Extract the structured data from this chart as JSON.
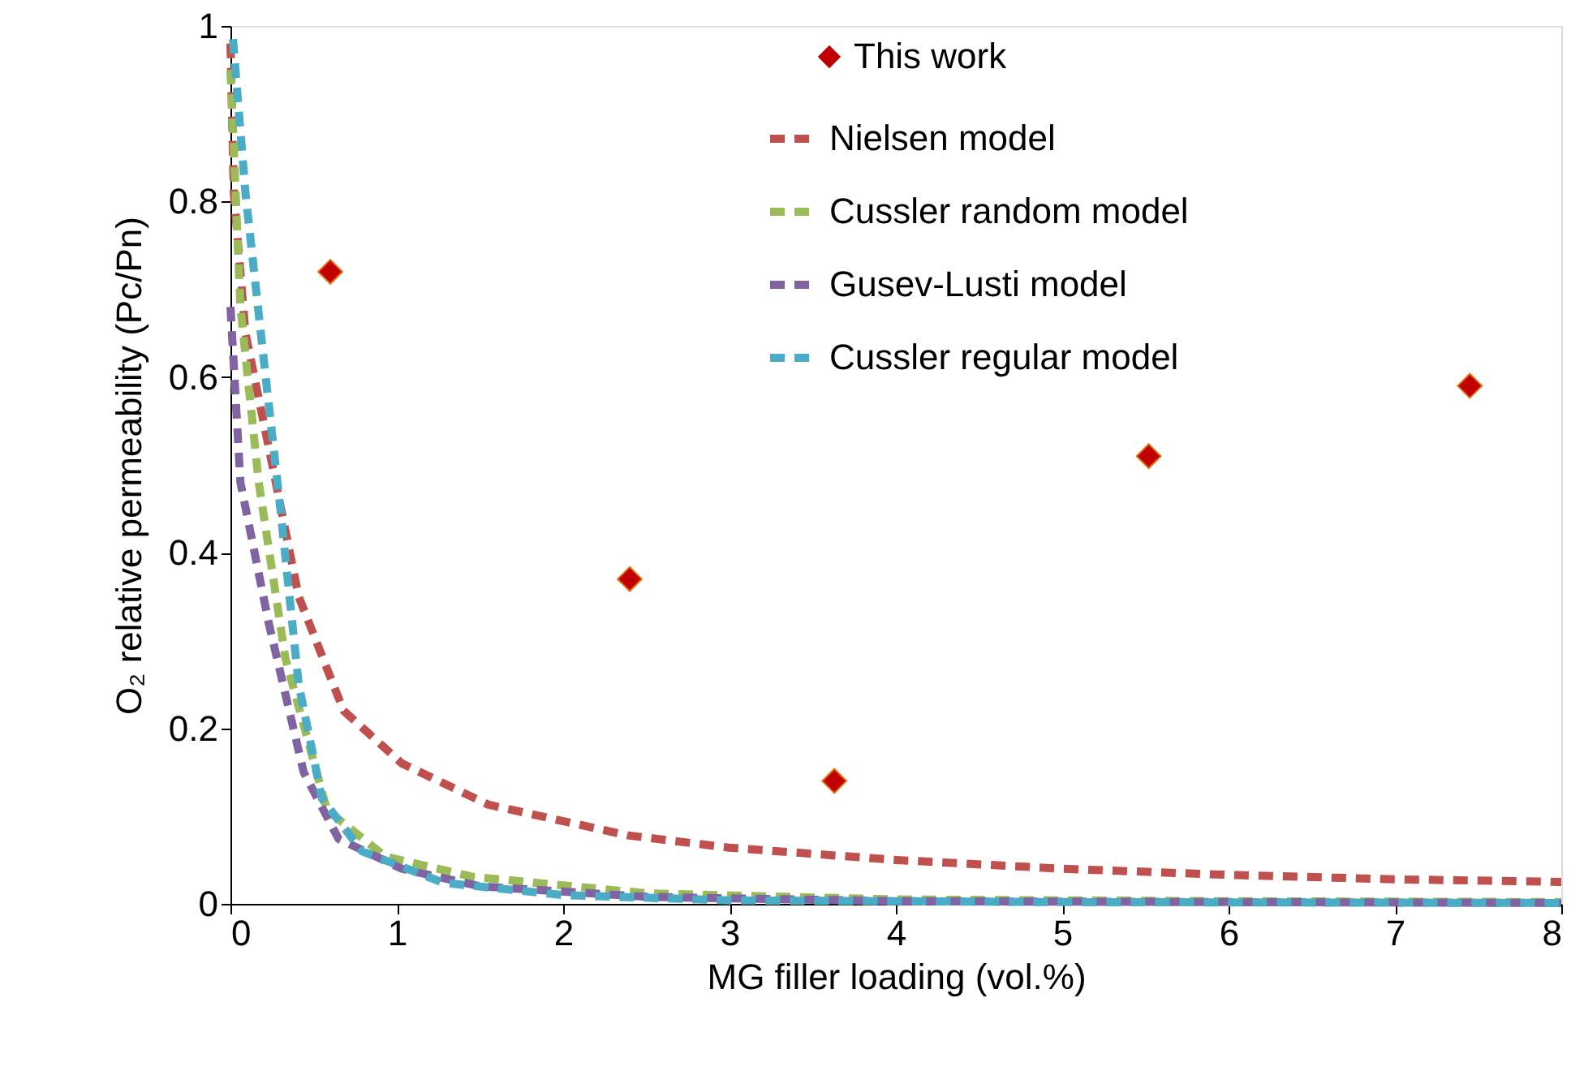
{
  "chart_data": {
    "type": "line",
    "xlabel": "MG filler loading (vol.%)",
    "ylabel": "O₂ relative permeability (Pc/Pn)",
    "xlim": [
      0,
      8
    ],
    "xticks": [
      0,
      1,
      2,
      3,
      4,
      5,
      6,
      7,
      8
    ],
    "ylim": [
      0,
      1
    ],
    "yticks": [
      0,
      0.2,
      0.4,
      0.6,
      0.8,
      1
    ],
    "grid": false,
    "legend": "top",
    "line_style": "dashed",
    "marker": "none",
    "series": [
      {
        "name": "This work",
        "type": "scatter",
        "marker": "diamond",
        "color": "#c00000",
        "x": [
          0.6,
          2.4,
          3.63,
          5.52,
          7.45
        ],
        "values": [
          0.72,
          0.37,
          0.14,
          0.51,
          0.59
        ]
      },
      {
        "name": "Nielsen model",
        "color": "#c0504d",
        "x": [
          0,
          0.02,
          0.09,
          0.23,
          0.41,
          0.68,
          1.03,
          1.55,
          2.39,
          3,
          4,
          5,
          6,
          7,
          8
        ],
        "values": [
          0.98,
          0.81,
          0.65,
          0.52,
          0.35,
          0.22,
          0.16,
          0.113,
          0.078,
          0.064,
          0.05,
          0.04,
          0.033,
          0.028,
          0.025
        ]
      },
      {
        "name": "Cussler random model",
        "color": "#9bbb59",
        "x": [
          0,
          0.06,
          0.17,
          0.33,
          0.58,
          0.93,
          1.45,
          2.5,
          4,
          6,
          8
        ],
        "values": [
          0.95,
          0.68,
          0.48,
          0.28,
          0.107,
          0.054,
          0.031,
          0.012,
          0.005,
          0.003,
          0.002
        ]
      },
      {
        "name": "Gusev-Lusti model",
        "color": "#8064a2",
        "x": [
          0,
          0.06,
          0.23,
          0.44,
          0.65,
          1.03,
          1.5,
          2.5,
          4,
          6,
          8
        ],
        "values": [
          0.68,
          0.48,
          0.32,
          0.15,
          0.074,
          0.04,
          0.02,
          0.008,
          0.003,
          0.002,
          0.001
        ]
      },
      {
        "name": "Cussler regular model",
        "color": "#4bacc6",
        "x": [
          0.015,
          0.09,
          0.2,
          0.3,
          0.41,
          0.55,
          0.79,
          1.28,
          2,
          3,
          5,
          8
        ],
        "values": [
          0.985,
          0.81,
          0.62,
          0.45,
          0.25,
          0.12,
          0.06,
          0.024,
          0.01,
          0.004,
          0.002,
          0.001
        ]
      }
    ]
  }
}
